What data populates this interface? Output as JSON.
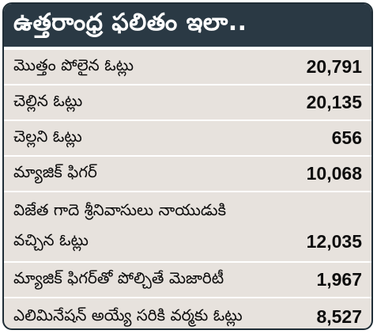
{
  "title": "ఉత్తరాంధ్ర ఫలితం ఇలా..",
  "rows": [
    {
      "label": "మొత్తం పోలైన ఓట్లు",
      "value": "20,791"
    },
    {
      "label": "చెల్లిన ఓట్లు",
      "value": "20,135"
    },
    {
      "label": "చెల్లని ఓట్లు",
      "value": "656"
    },
    {
      "label": "మ్యాజిక్ ఫిగర్",
      "value": "10,068"
    },
    {
      "label_line1": "విజేత గాదె శ్రీనివాసులు నాయుడుకి",
      "label_line2": "వచ్చిన ఓట్లు",
      "value": "12,035"
    },
    {
      "label": "మ్యాజిక్ ఫిగర్‌తో పోల్చితే మెజారిటీ",
      "value": "1,967"
    },
    {
      "label": "ఎలిమినేషన్ అయ్యే సరికి వర్మకు ఓట్లు",
      "value": "8,527"
    }
  ]
}
